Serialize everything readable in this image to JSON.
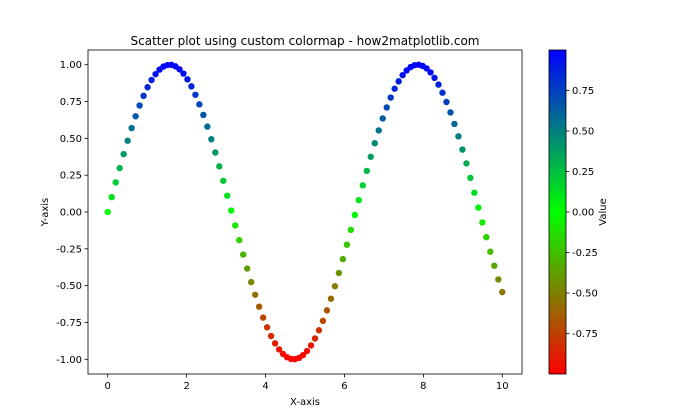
{
  "chart_data": {
    "type": "scatter",
    "title": "Scatter plot using custom colormap - how2matplotlib.com",
    "xlabel": "X-axis",
    "ylabel": "Y-axis",
    "xlim": [
      -0.5,
      10.5
    ],
    "ylim": [
      -1.1,
      1.1
    ],
    "x_ticks": [
      0,
      2,
      4,
      6,
      8,
      10
    ],
    "x_tick_labels": [
      "0",
      "2",
      "4",
      "6",
      "8",
      "10"
    ],
    "y_ticks": [
      -1.0,
      -0.75,
      -0.5,
      -0.25,
      0.0,
      0.25,
      0.5,
      0.75,
      1.0
    ],
    "y_tick_labels": [
      "-1.00",
      "-0.75",
      "-0.50",
      "-0.25",
      "0.00",
      "0.25",
      "0.50",
      "0.75",
      "1.00"
    ],
    "grid": false,
    "points": [
      {
        "x": 0.0,
        "y": 0.0
      },
      {
        "x": 0.101,
        "y": 0.101
      },
      {
        "x": 0.202,
        "y": 0.201
      },
      {
        "x": 0.303,
        "y": 0.298
      },
      {
        "x": 0.404,
        "y": 0.393
      },
      {
        "x": 0.505,
        "y": 0.484
      },
      {
        "x": 0.606,
        "y": 0.57
      },
      {
        "x": 0.707,
        "y": 0.65
      },
      {
        "x": 0.808,
        "y": 0.723
      },
      {
        "x": 0.909,
        "y": 0.789
      },
      {
        "x": 1.01,
        "y": 0.847
      },
      {
        "x": 1.111,
        "y": 0.896
      },
      {
        "x": 1.212,
        "y": 0.936
      },
      {
        "x": 1.313,
        "y": 0.967
      },
      {
        "x": 1.414,
        "y": 0.988
      },
      {
        "x": 1.515,
        "y": 0.998
      },
      {
        "x": 1.616,
        "y": 0.999
      },
      {
        "x": 1.717,
        "y": 0.989
      },
      {
        "x": 1.818,
        "y": 0.969
      },
      {
        "x": 1.919,
        "y": 0.94
      },
      {
        "x": 2.02,
        "y": 0.901
      },
      {
        "x": 2.121,
        "y": 0.853
      },
      {
        "x": 2.222,
        "y": 0.796
      },
      {
        "x": 2.323,
        "y": 0.731
      },
      {
        "x": 2.424,
        "y": 0.659
      },
      {
        "x": 2.525,
        "y": 0.58
      },
      {
        "x": 2.626,
        "y": 0.494
      },
      {
        "x": 2.727,
        "y": 0.404
      },
      {
        "x": 2.828,
        "y": 0.31
      },
      {
        "x": 2.929,
        "y": 0.212
      },
      {
        "x": 3.03,
        "y": 0.111
      },
      {
        "x": 3.131,
        "y": 0.01
      },
      {
        "x": 3.232,
        "y": -0.091
      },
      {
        "x": 3.333,
        "y": -0.191
      },
      {
        "x": 3.434,
        "y": -0.289
      },
      {
        "x": 3.535,
        "y": -0.384
      },
      {
        "x": 3.636,
        "y": -0.476
      },
      {
        "x": 3.737,
        "y": -0.562
      },
      {
        "x": 3.838,
        "y": -0.643
      },
      {
        "x": 3.939,
        "y": -0.717
      },
      {
        "x": 4.04,
        "y": -0.783
      },
      {
        "x": 4.141,
        "y": -0.842
      },
      {
        "x": 4.242,
        "y": -0.892
      },
      {
        "x": 4.343,
        "y": -0.933
      },
      {
        "x": 4.444,
        "y": -0.964
      },
      {
        "x": 4.545,
        "y": -0.986
      },
      {
        "x": 4.646,
        "y": -0.998
      },
      {
        "x": 4.747,
        "y": -0.999
      },
      {
        "x": 4.848,
        "y": -0.991
      },
      {
        "x": 4.949,
        "y": -0.972
      },
      {
        "x": 5.051,
        "y": -0.944
      },
      {
        "x": 5.152,
        "y": -0.906
      },
      {
        "x": 5.253,
        "y": -0.859
      },
      {
        "x": 5.354,
        "y": -0.803
      },
      {
        "x": 5.455,
        "y": -0.739
      },
      {
        "x": 5.556,
        "y": -0.668
      },
      {
        "x": 5.657,
        "y": -0.589
      },
      {
        "x": 5.758,
        "y": -0.504
      },
      {
        "x": 5.859,
        "y": -0.414
      },
      {
        "x": 5.96,
        "y": -0.32
      },
      {
        "x": 6.061,
        "y": -0.222
      },
      {
        "x": 6.162,
        "y": -0.121
      },
      {
        "x": 6.263,
        "y": -0.02
      },
      {
        "x": 6.364,
        "y": 0.081
      },
      {
        "x": 6.465,
        "y": 0.181
      },
      {
        "x": 6.566,
        "y": 0.279
      },
      {
        "x": 6.667,
        "y": 0.375
      },
      {
        "x": 6.768,
        "y": 0.467
      },
      {
        "x": 6.869,
        "y": 0.554
      },
      {
        "x": 6.97,
        "y": 0.635
      },
      {
        "x": 7.071,
        "y": 0.71
      },
      {
        "x": 7.172,
        "y": 0.777
      },
      {
        "x": 7.273,
        "y": 0.837
      },
      {
        "x": 7.374,
        "y": 0.887
      },
      {
        "x": 7.475,
        "y": 0.929
      },
      {
        "x": 7.576,
        "y": 0.961
      },
      {
        "x": 7.677,
        "y": 0.984
      },
      {
        "x": 7.778,
        "y": 0.997
      },
      {
        "x": 7.879,
        "y": 1.0
      },
      {
        "x": 7.98,
        "y": 0.992
      },
      {
        "x": 8.081,
        "y": 0.975
      },
      {
        "x": 8.182,
        "y": 0.948
      },
      {
        "x": 8.283,
        "y": 0.911
      },
      {
        "x": 8.384,
        "y": 0.865
      },
      {
        "x": 8.485,
        "y": 0.81
      },
      {
        "x": 8.586,
        "y": 0.747
      },
      {
        "x": 8.687,
        "y": 0.676
      },
      {
        "x": 8.788,
        "y": 0.598
      },
      {
        "x": 8.889,
        "y": 0.514
      },
      {
        "x": 8.99,
        "y": 0.424
      },
      {
        "x": 9.091,
        "y": 0.33
      },
      {
        "x": 9.192,
        "y": 0.232
      },
      {
        "x": 9.293,
        "y": 0.131
      },
      {
        "x": 9.394,
        "y": 0.03
      },
      {
        "x": 9.495,
        "y": -0.071
      },
      {
        "x": 9.596,
        "y": -0.171
      },
      {
        "x": 9.697,
        "y": -0.27
      },
      {
        "x": 9.798,
        "y": -0.365
      },
      {
        "x": 9.899,
        "y": -0.458
      },
      {
        "x": 10.0,
        "y": -0.544
      }
    ],
    "color_value": "y",
    "colormap": {
      "stops": [
        {
          "value": -1.0,
          "color": "#ff0000"
        },
        {
          "value": 0.0,
          "color": "#00ff00"
        },
        {
          "value": 1.0,
          "color": "#0000ff"
        }
      ]
    },
    "colorbar": {
      "label": "Value",
      "range": [
        -1.0,
        1.0
      ],
      "ticks": [
        -0.75,
        -0.5,
        -0.25,
        0.0,
        0.25,
        0.5,
        0.75
      ],
      "tick_labels": [
        "-0.75",
        "-0.50",
        "-0.25",
        "0.00",
        "0.25",
        "0.50",
        "0.75"
      ],
      "placement": "right"
    }
  }
}
